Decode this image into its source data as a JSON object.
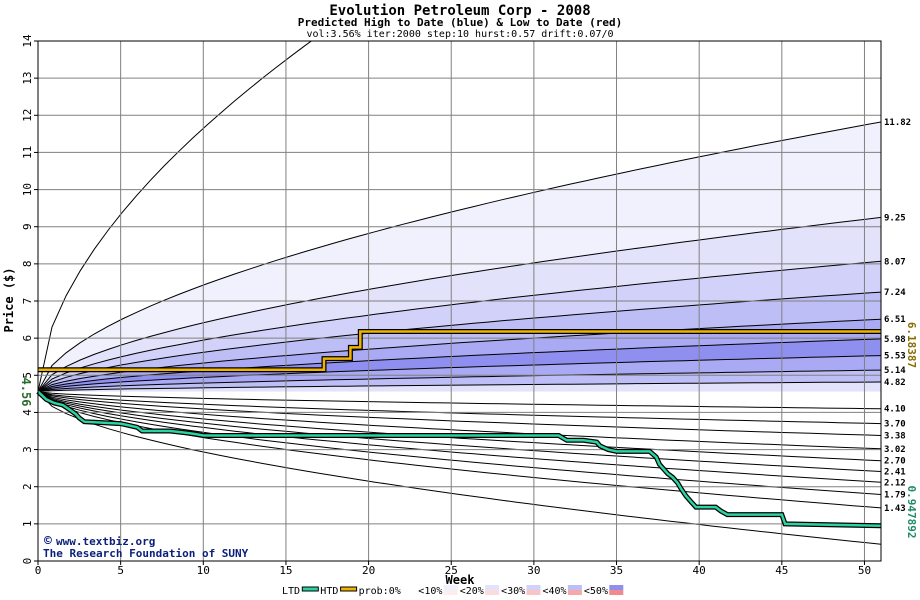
{
  "chart_data": {
    "type": "area",
    "title": "Evolution Petroleum Corp - 2008",
    "subtitle": "Predicted High to Date (blue) &  Low to Date (red)",
    "params": "vol:3.56% iter:2000 step:10 hurst:0.57 drift:0.07/0",
    "xlabel": "Week",
    "ylabel": "Price ($)",
    "xlim": [
      0,
      51
    ],
    "ylim": [
      0,
      14
    ],
    "x_ticks": [
      0,
      5,
      10,
      15,
      20,
      25,
      30,
      35,
      40,
      45,
      50
    ],
    "y_ticks": [
      0,
      1,
      2,
      3,
      4,
      5,
      6,
      7,
      8,
      9,
      10,
      11,
      12,
      13,
      14
    ],
    "start_price_label": "4.56",
    "start_price": 4.56,
    "high_quantiles": [
      {
        "label": "",
        "end": 22.5,
        "fill": "#ffffff"
      },
      {
        "label": "11.82",
        "end": 11.82,
        "fill": "#f1f1fd"
      },
      {
        "label": "9.25",
        "end": 9.25,
        "fill": "#e2e2fb"
      },
      {
        "label": "8.07",
        "end": 8.07,
        "fill": "#d1d1f9"
      },
      {
        "label": "7.24",
        "end": 7.24,
        "fill": "#bebef7"
      },
      {
        "label": "6.51",
        "end": 6.51,
        "fill": "#a9a9f4"
      },
      {
        "label": "5.98",
        "end": 5.98,
        "fill": "#8f8ff0"
      },
      {
        "label": "5.53",
        "end": 5.53,
        "fill": "#a9a9f4"
      },
      {
        "label": "5.14",
        "end": 5.14,
        "fill": "#bebef7"
      },
      {
        "label": "4.82",
        "end": 4.82,
        "fill": "#e2e2fb"
      }
    ],
    "low_quantiles": [
      {
        "label": "4.10",
        "end": 4.1,
        "fill": "#fdeeee"
      },
      {
        "label": "3.70",
        "end": 3.7,
        "fill": "#fbdcdc"
      },
      {
        "label": "3.38",
        "end": 3.38,
        "fill": "#f8c4c4"
      },
      {
        "label": "3.02",
        "end": 3.02,
        "fill": "#f5a9a9"
      },
      {
        "label": "2.70",
        "end": 2.7,
        "fill": "#f18a8a"
      },
      {
        "label": "2.41",
        "end": 2.41,
        "fill": "#f5a9a9"
      },
      {
        "label": "2.12",
        "end": 2.12,
        "fill": "#f8c4c4"
      },
      {
        "label": "1.79",
        "end": 1.79,
        "fill": "#fbdcdc"
      },
      {
        "label": "1.43",
        "end": 1.43,
        "fill": "#fdeeee"
      },
      {
        "label": "",
        "end": 0.45,
        "fill": "#ffffff"
      }
    ],
    "series": [
      {
        "name": "HTD",
        "color": "#f0b400",
        "points": [
          [
            0,
            5.15
          ],
          [
            17.3,
            5.15
          ],
          [
            17.3,
            5.45
          ],
          [
            18.9,
            5.45
          ],
          [
            18.9,
            5.75
          ],
          [
            19.5,
            5.75
          ],
          [
            19.5,
            6.18
          ],
          [
            51,
            6.18
          ]
        ]
      },
      {
        "name": "LTD",
        "color": "#2ad3a0",
        "points": [
          [
            0,
            4.56
          ],
          [
            0.5,
            4.35
          ],
          [
            1,
            4.25
          ],
          [
            1.5,
            4.2
          ],
          [
            2,
            4.05
          ],
          [
            2.3,
            3.95
          ],
          [
            2.5,
            3.85
          ],
          [
            2.8,
            3.75
          ],
          [
            4,
            3.72
          ],
          [
            5,
            3.7
          ],
          [
            5.5,
            3.65
          ],
          [
            6,
            3.6
          ],
          [
            6.3,
            3.5
          ],
          [
            8,
            3.5
          ],
          [
            9,
            3.45
          ],
          [
            9.5,
            3.42
          ],
          [
            10,
            3.38
          ],
          [
            12,
            3.38
          ],
          [
            15,
            3.38
          ],
          [
            20,
            3.38
          ],
          [
            25,
            3.38
          ],
          [
            30,
            3.38
          ],
          [
            31.5,
            3.38
          ],
          [
            31.8,
            3.3
          ],
          [
            32,
            3.25
          ],
          [
            33,
            3.25
          ],
          [
            33.8,
            3.2
          ],
          [
            34,
            3.1
          ],
          [
            34.5,
            3.0
          ],
          [
            35,
            2.95
          ],
          [
            37,
            2.95
          ],
          [
            37.4,
            2.8
          ],
          [
            37.6,
            2.6
          ],
          [
            37.9,
            2.45
          ],
          [
            38.1,
            2.35
          ],
          [
            38.4,
            2.25
          ],
          [
            38.7,
            2.1
          ],
          [
            38.9,
            1.95
          ],
          [
            39.2,
            1.75
          ],
          [
            39.5,
            1.6
          ],
          [
            39.8,
            1.45
          ],
          [
            41,
            1.45
          ],
          [
            41.3,
            1.35
          ],
          [
            41.7,
            1.25
          ],
          [
            45,
            1.25
          ],
          [
            45.2,
            1.0
          ],
          [
            51,
            0.95
          ]
        ]
      }
    ],
    "right_axis_labels": [
      {
        "label": "6.18387",
        "value": 6.18387,
        "color": "#8a6d00"
      },
      {
        "label": "0.947892",
        "value": 0.947892,
        "color": "#1f8a6a"
      }
    ],
    "legend": {
      "position": "bottom",
      "items": [
        {
          "label": "LTD",
          "kind": "line",
          "color": "#2ad3a0"
        },
        {
          "label": "HTD",
          "kind": "line",
          "color": "#f0b400"
        },
        {
          "label": "prob:0%",
          "kind": "swatch",
          "top": "#ffffff",
          "bottom": "#ffffff"
        },
        {
          "label": "<10%",
          "kind": "swatch",
          "top": "#f1f1fd",
          "bottom": "#fdeeee"
        },
        {
          "label": "<20%",
          "kind": "swatch",
          "top": "#e2e2fb",
          "bottom": "#fbdcdc"
        },
        {
          "label": "<30%",
          "kind": "swatch",
          "top": "#d1d1f9",
          "bottom": "#f8c4c4"
        },
        {
          "label": "<40%",
          "kind": "swatch",
          "top": "#bebef7",
          "bottom": "#f5a9a9"
        },
        {
          "label": "<50%",
          "kind": "swatch",
          "top": "#8f8ff0",
          "bottom": "#f18a8a"
        }
      ]
    },
    "credits": {
      "site": "www.textbiz.org",
      "org": "The Research Foundation of SUNY"
    },
    "grid": true
  }
}
